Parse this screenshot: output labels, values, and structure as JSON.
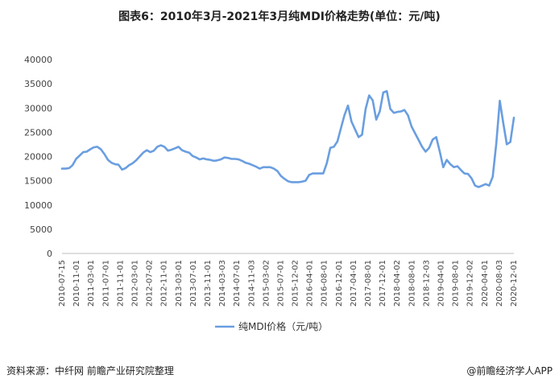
{
  "title": "图表6：2010年3月-2021年3月纯MDI价格走势(单位：元/吨)",
  "footer": {
    "source": "资料来源：中纤网 前瞻产业研究院整理",
    "brand": "@前瞻经济学人APP"
  },
  "colors": {
    "line": "#6a9ee0",
    "grid": "#d9d9d9",
    "axis": "#bfbfbf"
  },
  "chart_data": {
    "type": "line",
    "title": "图表6：2010年3月-2021年3月纯MDI价格走势(单位：元/吨)",
    "ylim": [
      0,
      40000
    ],
    "yticks": [
      0,
      5000,
      10000,
      15000,
      20000,
      25000,
      30000,
      35000,
      40000
    ],
    "grid": false,
    "legend_position": "bottom",
    "xticks": [
      "2010-07-15",
      "2010-11-01",
      "2011-03-01",
      "2011-07-01",
      "2011-11-01",
      "2012-03-01",
      "2012-07-02",
      "2012-11-01",
      "2013-03-01",
      "2013-07-01",
      "2013-11-01",
      "2014-03-03",
      "2014-07-01",
      "2014-11-03",
      "2015-03-02",
      "2015-07-01",
      "2015-12-02",
      "2016-04-01",
      "2016-08-01",
      "2016-12-01",
      "2017-04-01",
      "2017-08-01",
      "2017-12-01",
      "2018-04-02",
      "2018-08-01",
      "2018-12-03",
      "2019-04-01",
      "2019-08-01",
      "2019-12-02",
      "2020-04-01",
      "2020-08-03",
      "2020-12-01"
    ],
    "series": [
      {
        "name": "纯MDI价格（元/吨）",
        "values": [
          17500,
          17500,
          17600,
          18200,
          19500,
          20200,
          20900,
          21000,
          21500,
          21900,
          22000,
          21500,
          20500,
          19300,
          18700,
          18400,
          18300,
          17300,
          17600,
          18200,
          18600,
          19200,
          20000,
          20800,
          21300,
          20900,
          21200,
          22000,
          22300,
          22000,
          21200,
          21400,
          21700,
          22000,
          21300,
          21000,
          20800,
          20100,
          19800,
          19400,
          19600,
          19400,
          19300,
          19100,
          19200,
          19400,
          19800,
          19700,
          19500,
          19500,
          19400,
          19100,
          18700,
          18500,
          18200,
          17900,
          17500,
          17800,
          17800,
          17800,
          17500,
          17000,
          16000,
          15400,
          14900,
          14700,
          14700,
          14700,
          14800,
          15000,
          16200,
          16500,
          16500,
          16500,
          16500,
          18600,
          21800,
          22000,
          23100,
          25800,
          28500,
          30500,
          27200,
          25600,
          24000,
          24500,
          29800,
          32600,
          31600,
          27600,
          29300,
          33200,
          33500,
          29800,
          29000,
          29200,
          29300,
          29600,
          28500,
          26200,
          24800,
          23400,
          22000,
          21000,
          21800,
          23500,
          24000,
          21000,
          17800,
          19300,
          18400,
          17800,
          18000,
          17200,
          16500,
          16400,
          15500,
          14000,
          13700,
          14000,
          14300,
          14000,
          15800,
          22600,
          31500,
          26800,
          22500,
          23000,
          28000
        ]
      }
    ]
  }
}
